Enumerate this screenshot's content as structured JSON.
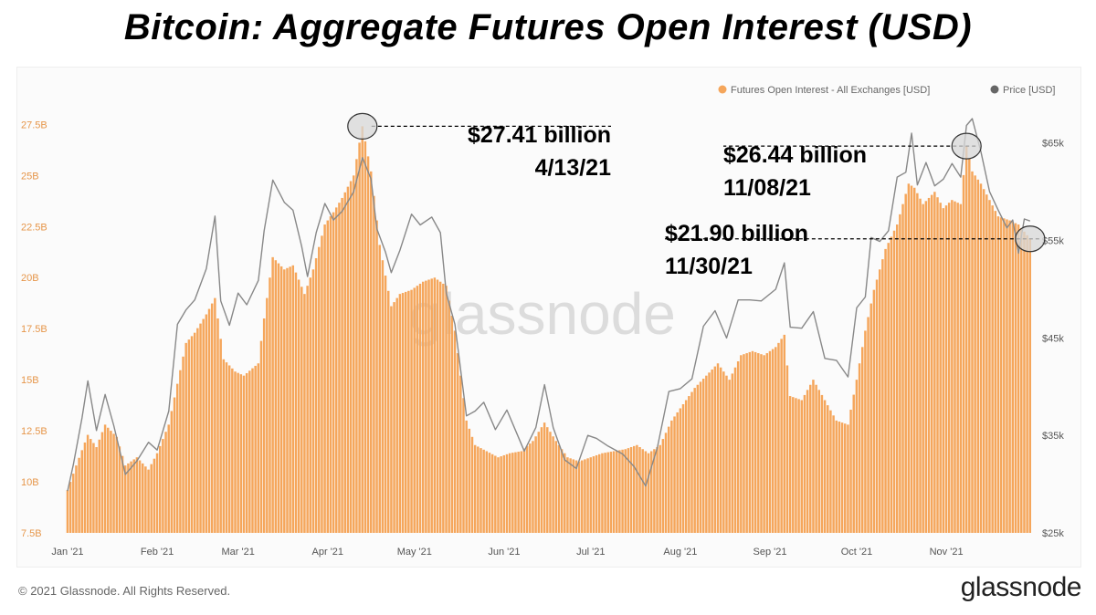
{
  "title": "Bitcoin: Aggregate Futures Open Interest (USD)",
  "watermark": "glassnode",
  "footer": {
    "copyright": "© 2021 Glassnode. All Rights Reserved.",
    "logo": "glassnode"
  },
  "colors": {
    "bars": "#f5a65b",
    "price_line": "#888888",
    "axis_left_text": "#e6964a",
    "axis_right_text": "#555555",
    "legend_oi": "#f5a65b",
    "legend_price": "#666666",
    "watermark": "#dcdcdc"
  },
  "chart_data": {
    "type": "bar",
    "legend": [
      {
        "name": "Futures Open Interest - All Exchanges [USD]",
        "marker": "circle"
      },
      {
        "name": "Price [USD]",
        "marker": "circle"
      }
    ],
    "legend_position": "top-right",
    "grid": false,
    "x_range": [
      "2021-01-01",
      "2021-12-01"
    ],
    "x_ticks": [
      {
        "label": "Jan '21",
        "date": "2021-01-01"
      },
      {
        "label": "Feb '21",
        "date": "2021-02-01"
      },
      {
        "label": "Mar '21",
        "date": "2021-03-01"
      },
      {
        "label": "Apr '21",
        "date": "2021-04-01"
      },
      {
        "label": "May '21",
        "date": "2021-05-01"
      },
      {
        "label": "Jun '21",
        "date": "2021-06-01"
      },
      {
        "label": "Jul '21",
        "date": "2021-07-01"
      },
      {
        "label": "Aug '21",
        "date": "2021-08-01"
      },
      {
        "label": "Sep '21",
        "date": "2021-09-01"
      },
      {
        "label": "Oct '21",
        "date": "2021-10-01"
      },
      {
        "label": "Nov '21",
        "date": "2021-11-01"
      }
    ],
    "y_left": {
      "ylim": [
        7.5,
        28.5
      ],
      "unit": "B USD",
      "ticks": [
        {
          "value": 7.5,
          "label": "7.5B"
        },
        {
          "value": 10,
          "label": "10B"
        },
        {
          "value": 12.5,
          "label": "12.5B"
        },
        {
          "value": 15,
          "label": "15B"
        },
        {
          "value": 17.5,
          "label": "17.5B"
        },
        {
          "value": 20,
          "label": "20B"
        },
        {
          "value": 22.5,
          "label": "22.5B"
        },
        {
          "value": 25,
          "label": "25B"
        },
        {
          "value": 27.5,
          "label": "27.5B"
        }
      ]
    },
    "y_right": {
      "ylim": [
        25000,
        69000
      ],
      "unit": "USD",
      "ticks": [
        {
          "value": 25000,
          "label": "$25k"
        },
        {
          "value": 35000,
          "label": "$35k"
        },
        {
          "value": 45000,
          "label": "$45k"
        },
        {
          "value": 55000,
          "label": "$55k"
        },
        {
          "value": 65000,
          "label": "$65k"
        }
      ]
    },
    "series": [
      {
        "name": "Futures Open Interest - All Exchanges [USD]",
        "kind": "bar",
        "axis": "left",
        "points": [
          [
            "2021-01-01",
            9.6
          ],
          [
            "2021-01-04",
            10.8
          ],
          [
            "2021-01-08",
            12.3
          ],
          [
            "2021-01-11",
            11.7
          ],
          [
            "2021-01-14",
            12.8
          ],
          [
            "2021-01-18",
            12.2
          ],
          [
            "2021-01-21",
            10.8
          ],
          [
            "2021-01-25",
            11.2
          ],
          [
            "2021-01-29",
            10.6
          ],
          [
            "2021-02-01",
            11.4
          ],
          [
            "2021-02-05",
            12.8
          ],
          [
            "2021-02-08",
            14.8
          ],
          [
            "2021-02-11",
            16.8
          ],
          [
            "2021-02-14",
            17.3
          ],
          [
            "2021-02-18",
            18.2
          ],
          [
            "2021-02-21",
            19.0
          ],
          [
            "2021-02-24",
            16.0
          ],
          [
            "2021-02-28",
            15.4
          ],
          [
            "2021-03-03",
            15.2
          ],
          [
            "2021-03-08",
            15.8
          ],
          [
            "2021-03-10",
            18.0
          ],
          [
            "2021-03-13",
            21.0
          ],
          [
            "2021-03-17",
            20.4
          ],
          [
            "2021-03-20",
            20.6
          ],
          [
            "2021-03-24",
            19.2
          ],
          [
            "2021-03-27",
            20.4
          ],
          [
            "2021-03-31",
            22.6
          ],
          [
            "2021-04-03",
            23.2
          ],
          [
            "2021-04-06",
            23.9
          ],
          [
            "2021-04-10",
            25.0
          ],
          [
            "2021-04-13",
            27.41
          ],
          [
            "2021-04-16",
            25.2
          ],
          [
            "2021-04-19",
            21.6
          ],
          [
            "2021-04-23",
            18.6
          ],
          [
            "2021-04-26",
            19.2
          ],
          [
            "2021-04-30",
            19.4
          ],
          [
            "2021-05-04",
            19.8
          ],
          [
            "2021-05-08",
            20.0
          ],
          [
            "2021-05-12",
            19.6
          ],
          [
            "2021-05-15",
            17.4
          ],
          [
            "2021-05-19",
            13.0
          ],
          [
            "2021-05-22",
            11.8
          ],
          [
            "2021-05-26",
            11.5
          ],
          [
            "2021-05-30",
            11.2
          ],
          [
            "2021-06-03",
            11.4
          ],
          [
            "2021-06-07",
            11.5
          ],
          [
            "2021-06-11",
            12.0
          ],
          [
            "2021-06-15",
            12.9
          ],
          [
            "2021-06-19",
            12.0
          ],
          [
            "2021-06-23",
            11.2
          ],
          [
            "2021-06-27",
            11.0
          ],
          [
            "2021-07-01",
            11.2
          ],
          [
            "2021-07-05",
            11.4
          ],
          [
            "2021-07-09",
            11.5
          ],
          [
            "2021-07-13",
            11.6
          ],
          [
            "2021-07-17",
            11.8
          ],
          [
            "2021-07-21",
            11.4
          ],
          [
            "2021-07-25",
            11.8
          ],
          [
            "2021-07-29",
            13.0
          ],
          [
            "2021-08-02",
            13.8
          ],
          [
            "2021-08-06",
            14.6
          ],
          [
            "2021-08-10",
            15.2
          ],
          [
            "2021-08-14",
            15.8
          ],
          [
            "2021-08-18",
            15.0
          ],
          [
            "2021-08-22",
            16.2
          ],
          [
            "2021-08-26",
            16.4
          ],
          [
            "2021-08-30",
            16.2
          ],
          [
            "2021-09-03",
            16.6
          ],
          [
            "2021-09-06",
            17.2
          ],
          [
            "2021-09-08",
            14.2
          ],
          [
            "2021-09-12",
            14.0
          ],
          [
            "2021-09-16",
            15.0
          ],
          [
            "2021-09-20",
            14.0
          ],
          [
            "2021-09-24",
            13.0
          ],
          [
            "2021-09-28",
            12.8
          ],
          [
            "2021-10-01",
            15.0
          ],
          [
            "2021-10-04",
            17.4
          ],
          [
            "2021-10-07",
            19.4
          ],
          [
            "2021-10-11",
            21.4
          ],
          [
            "2021-10-15",
            22.6
          ],
          [
            "2021-10-19",
            24.6
          ],
          [
            "2021-10-21",
            24.4
          ],
          [
            "2021-10-24",
            23.6
          ],
          [
            "2021-10-28",
            24.2
          ],
          [
            "2021-10-31",
            23.4
          ],
          [
            "2021-11-03",
            23.8
          ],
          [
            "2021-11-06",
            23.6
          ],
          [
            "2021-11-08",
            26.44
          ],
          [
            "2021-11-10",
            25.2
          ],
          [
            "2021-11-13",
            24.6
          ],
          [
            "2021-11-16",
            23.8
          ],
          [
            "2021-11-19",
            23.0
          ],
          [
            "2021-11-23",
            22.8
          ],
          [
            "2021-11-26",
            22.6
          ],
          [
            "2021-11-30",
            21.9
          ]
        ]
      },
      {
        "name": "Price [USD]",
        "kind": "line",
        "axis": "right",
        "points": [
          [
            "2021-01-01",
            29300
          ],
          [
            "2021-01-03",
            32000
          ],
          [
            "2021-01-06",
            36800
          ],
          [
            "2021-01-08",
            40600
          ],
          [
            "2021-01-11",
            35500
          ],
          [
            "2021-01-14",
            39200
          ],
          [
            "2021-01-17",
            36000
          ],
          [
            "2021-01-21",
            31000
          ],
          [
            "2021-01-25",
            32400
          ],
          [
            "2021-01-29",
            34300
          ],
          [
            "2021-02-01",
            33500
          ],
          [
            "2021-02-05",
            37500
          ],
          [
            "2021-02-08",
            46400
          ],
          [
            "2021-02-11",
            47900
          ],
          [
            "2021-02-14",
            48900
          ],
          [
            "2021-02-18",
            52100
          ],
          [
            "2021-02-21",
            57500
          ],
          [
            "2021-02-23",
            48800
          ],
          [
            "2021-02-26",
            46300
          ],
          [
            "2021-03-01",
            49600
          ],
          [
            "2021-03-04",
            48400
          ],
          [
            "2021-03-08",
            50900
          ],
          [
            "2021-03-10",
            56000
          ],
          [
            "2021-03-13",
            61200
          ],
          [
            "2021-03-17",
            58900
          ],
          [
            "2021-03-20",
            58100
          ],
          [
            "2021-03-23",
            54400
          ],
          [
            "2021-03-25",
            51300
          ],
          [
            "2021-03-28",
            55800
          ],
          [
            "2021-03-31",
            58800
          ],
          [
            "2021-04-03",
            57100
          ],
          [
            "2021-04-06",
            58000
          ],
          [
            "2021-04-10",
            60000
          ],
          [
            "2021-04-13",
            63500
          ],
          [
            "2021-04-16",
            61300
          ],
          [
            "2021-04-18",
            56200
          ],
          [
            "2021-04-21",
            53800
          ],
          [
            "2021-04-23",
            51700
          ],
          [
            "2021-04-26",
            54000
          ],
          [
            "2021-04-30",
            57700
          ],
          [
            "2021-05-03",
            56600
          ],
          [
            "2021-05-07",
            57400
          ],
          [
            "2021-05-10",
            55800
          ],
          [
            "2021-05-12",
            49600
          ],
          [
            "2021-05-15",
            46400
          ],
          [
            "2021-05-19",
            37000
          ],
          [
            "2021-05-22",
            37500
          ],
          [
            "2021-05-25",
            38400
          ],
          [
            "2021-05-29",
            35600
          ],
          [
            "2021-06-02",
            37600
          ],
          [
            "2021-06-05",
            35500
          ],
          [
            "2021-06-08",
            33400
          ],
          [
            "2021-06-12",
            35800
          ],
          [
            "2021-06-15",
            40200
          ],
          [
            "2021-06-18",
            35800
          ],
          [
            "2021-06-22",
            32500
          ],
          [
            "2021-06-26",
            31600
          ],
          [
            "2021-06-30",
            35000
          ],
          [
            "2021-07-03",
            34700
          ],
          [
            "2021-07-07",
            33900
          ],
          [
            "2021-07-12",
            33100
          ],
          [
            "2021-07-16",
            31800
          ],
          [
            "2021-07-20",
            29800
          ],
          [
            "2021-07-24",
            33700
          ],
          [
            "2021-07-28",
            39500
          ],
          [
            "2021-08-01",
            39800
          ],
          [
            "2021-08-05",
            40800
          ],
          [
            "2021-08-09",
            46200
          ],
          [
            "2021-08-13",
            47800
          ],
          [
            "2021-08-17",
            45000
          ],
          [
            "2021-08-21",
            48900
          ],
          [
            "2021-08-25",
            48900
          ],
          [
            "2021-08-29",
            48800
          ],
          [
            "2021-09-03",
            50000
          ],
          [
            "2021-09-06",
            52700
          ],
          [
            "2021-09-08",
            46100
          ],
          [
            "2021-09-12",
            46000
          ],
          [
            "2021-09-16",
            47700
          ],
          [
            "2021-09-20",
            42900
          ],
          [
            "2021-09-24",
            42700
          ],
          [
            "2021-09-28",
            41000
          ],
          [
            "2021-10-01",
            48100
          ],
          [
            "2021-10-04",
            49200
          ],
          [
            "2021-10-06",
            55300
          ],
          [
            "2021-10-09",
            54900
          ],
          [
            "2021-10-12",
            56000
          ],
          [
            "2021-10-15",
            61500
          ],
          [
            "2021-10-18",
            62000
          ],
          [
            "2021-10-20",
            66000
          ],
          [
            "2021-10-22",
            60700
          ],
          [
            "2021-10-25",
            63000
          ],
          [
            "2021-10-28",
            60600
          ],
          [
            "2021-10-31",
            61300
          ],
          [
            "2021-11-03",
            62900
          ],
          [
            "2021-11-06",
            61500
          ],
          [
            "2021-11-08",
            66800
          ],
          [
            "2021-11-10",
            67500
          ],
          [
            "2021-11-13",
            64100
          ],
          [
            "2021-11-16",
            60000
          ],
          [
            "2021-11-19",
            58100
          ],
          [
            "2021-11-22",
            56300
          ],
          [
            "2021-11-24",
            57100
          ],
          [
            "2021-11-26",
            53700
          ],
          [
            "2021-11-28",
            57200
          ],
          [
            "2021-11-30",
            57000
          ]
        ]
      }
    ],
    "annotations": [
      {
        "value_text": "$27.41 billion",
        "date_text": "4/13/21",
        "date": "2021-04-13",
        "value": 27.41
      },
      {
        "value_text": "$26.44 billion",
        "date_text": "11/08/21",
        "date": "2021-11-08",
        "value": 26.44
      },
      {
        "value_text": "$21.90 billion",
        "date_text": "11/30/21",
        "date": "2021-11-30",
        "value": 21.9
      }
    ]
  }
}
